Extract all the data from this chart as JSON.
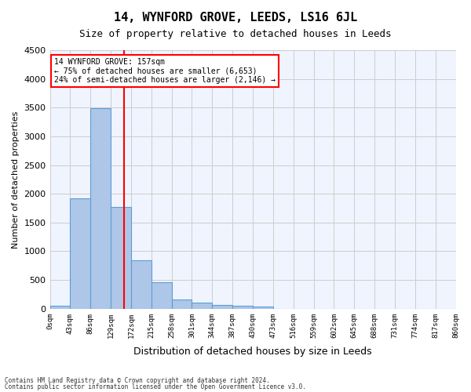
{
  "title": "14, WYNFORD GROVE, LEEDS, LS16 6JL",
  "subtitle": "Size of property relative to detached houses in Leeds",
  "xlabel": "Distribution of detached houses by size in Leeds",
  "ylabel": "Number of detached properties",
  "bin_labels": [
    "0sqm",
    "43sqm",
    "86sqm",
    "129sqm",
    "172sqm",
    "215sqm",
    "258sqm",
    "301sqm",
    "344sqm",
    "387sqm",
    "430sqm",
    "473sqm",
    "516sqm",
    "559sqm",
    "602sqm",
    "645sqm",
    "688sqm",
    "731sqm",
    "774sqm",
    "817sqm",
    "860sqm"
  ],
  "bar_values": [
    50,
    1920,
    3490,
    1770,
    840,
    460,
    160,
    100,
    70,
    55,
    40,
    0,
    0,
    0,
    0,
    0,
    0,
    0,
    0,
    0
  ],
  "bar_color": "#aec6e8",
  "bar_edge_color": "#5a9fd4",
  "grid_color": "#cccccc",
  "background_color": "#f0f4ff",
  "ylim": [
    0,
    4500
  ],
  "yticks": [
    0,
    500,
    1000,
    1500,
    2000,
    2500,
    3000,
    3500,
    4000,
    4500
  ],
  "property_size": 157,
  "red_line_bin": 3.65,
  "annotation_title": "14 WYNFORD GROVE: 157sqm",
  "annotation_line1": "← 75% of detached houses are smaller (6,653)",
  "annotation_line2": "24% of semi-detached houses are larger (2,146) →",
  "footer_line1": "Contains HM Land Registry data © Crown copyright and database right 2024.",
  "footer_line2": "Contains public sector information licensed under the Open Government Licence v3.0."
}
